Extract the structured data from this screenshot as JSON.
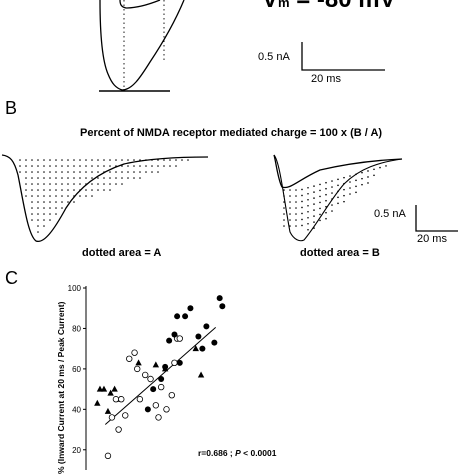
{
  "panel_a": {
    "vm_label": "V",
    "vm_subscript": "m",
    "vm_value": " = -80 mV",
    "scale_current": "0.5 nA",
    "scale_time": "20 ms"
  },
  "panel_b": {
    "letter": "B",
    "formula": "Percent of NMDA receptor mediated charge = 100 x (B / A)",
    "left_caption": "dotted area = A",
    "right_caption": "dotted area = B",
    "scale_current": "0.5 nA",
    "scale_time": "20 ms"
  },
  "panel_c": {
    "letter": "C",
    "ylabel": "% (Inward Current at 20 ms / Peak Current)",
    "stat_text_prefix": "r=0.686 ; ",
    "stat_text_p": "P",
    "stat_text_suffix": " < 0.0001",
    "chart_data": {
      "type": "scatter",
      "ylabel": "% (Inward Current at 20 ms / Peak Current)",
      "ylim": [
        10,
        100
      ],
      "yticks": [
        20,
        40,
        60,
        80,
        100
      ],
      "xlim": [
        0,
        1
      ],
      "x_tick_labels": [],
      "series": [
        {
          "marker": "triangle-filled",
          "x": [
            0.04,
            0.06,
            0.09,
            0.12,
            0.14,
            0.17,
            0.21,
            0.35,
            0.48,
            0.55,
            0.78,
            0.82
          ],
          "y": [
            43,
            50,
            50,
            39,
            48,
            50,
            45,
            63,
            62,
            60,
            70,
            57
          ]
        },
        {
          "marker": "circle-open",
          "x": [
            0.12,
            0.15,
            0.18,
            0.2,
            0.22,
            0.25,
            0.28,
            0.32,
            0.34,
            0.36,
            0.4,
            0.44,
            0.48,
            0.5,
            0.52,
            0.56,
            0.6,
            0.62,
            0.64,
            0.66
          ],
          "y": [
            17,
            36,
            45,
            30,
            45,
            37,
            65,
            68,
            60,
            45,
            57,
            55,
            42,
            36,
            51,
            40,
            47,
            63,
            75,
            75
          ]
        },
        {
          "marker": "circle-filled",
          "x": [
            0.42,
            0.46,
            0.52,
            0.55,
            0.58,
            0.62,
            0.64,
            0.66,
            0.7,
            0.74,
            0.8,
            0.83,
            0.86,
            0.92,
            0.96,
            0.98
          ],
          "y": [
            40,
            50,
            55,
            61,
            74,
            77,
            86,
            63,
            86,
            90,
            76,
            70,
            81,
            73,
            95,
            91
          ]
        }
      ],
      "regression": {
        "x": [
          0.1,
          0.93
        ],
        "y": [
          32.5,
          80.5
        ]
      }
    }
  }
}
